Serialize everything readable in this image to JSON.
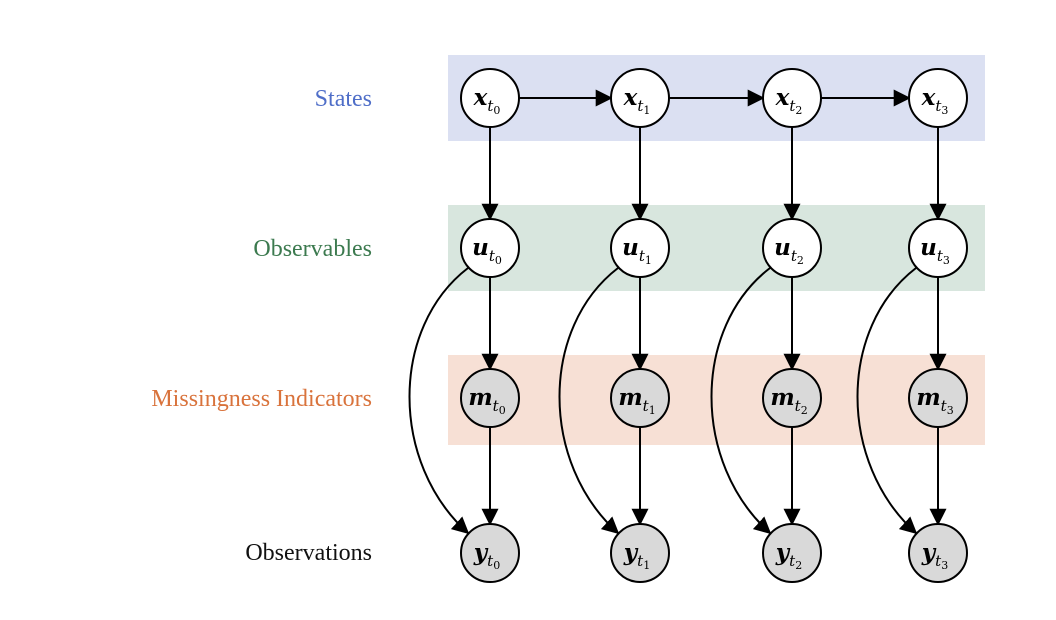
{
  "colors": {
    "states_band": "#dbe0f2",
    "observables_band": "#d8e6de",
    "missingness_band": "#f7e0d5",
    "states_text": "#4f6ec8",
    "observables_text": "#3c7a4f",
    "missingness_text": "#d9733c",
    "observations_text": "#111111",
    "open_node_fill": "#ffffff",
    "observed_node_fill": "#d9d9d9",
    "edge": "#000000"
  },
  "rows": [
    {
      "key": "states",
      "label": "States",
      "symbol": "x",
      "observed": false
    },
    {
      "key": "observables",
      "label": "Observables",
      "symbol": "u",
      "observed": false
    },
    {
      "key": "missingness",
      "label": "Missingness Indicators",
      "symbol": "m",
      "observed": true
    },
    {
      "key": "observations",
      "label": "Observations",
      "symbol": "y",
      "observed": true
    }
  ],
  "time_steps": [
    {
      "sub": "t",
      "index": "0"
    },
    {
      "sub": "t",
      "index": "1"
    },
    {
      "sub": "t",
      "index": "2"
    },
    {
      "sub": "t",
      "index": "3"
    }
  ]
}
